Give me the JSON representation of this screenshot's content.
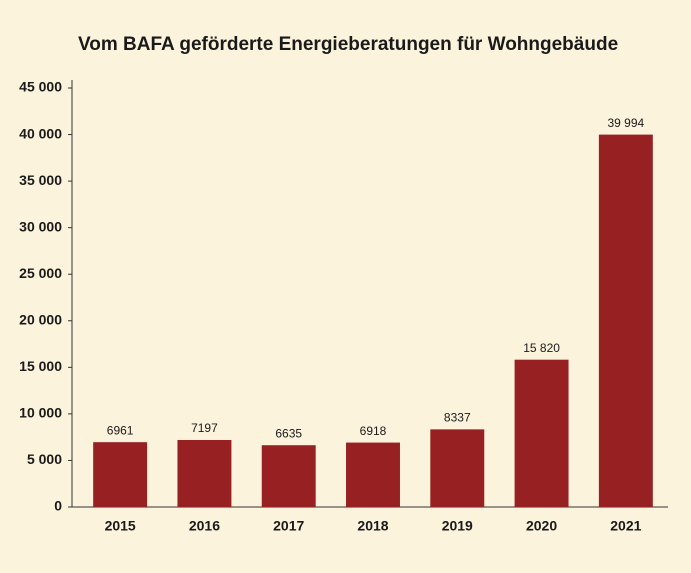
{
  "chart_data": {
    "type": "bar",
    "title": "Vom BAFA geförderte Energieberatungen für Wohngebäude",
    "categories": [
      "2015",
      "2016",
      "2017",
      "2018",
      "2019",
      "2020",
      "2021"
    ],
    "values": [
      6961,
      7197,
      6635,
      6918,
      8337,
      15820,
      39994
    ],
    "value_labels": [
      "6961",
      "7197",
      "6635",
      "6918",
      "8337",
      "15 820",
      "39 994"
    ],
    "color": "#962022",
    "ylim": [
      0,
      45000
    ],
    "yticks": [
      0,
      {
        "value": 5000,
        "label": "5 000"
      },
      {
        "value": 10000,
        "label": "10 000"
      },
      {
        "value": 15000,
        "label": "15 000"
      },
      {
        "value": 20000,
        "label": "20 000"
      },
      {
        "value": 25000,
        "label": "25 000"
      },
      {
        "value": 30000,
        "label": "30 000"
      },
      {
        "value": 35000,
        "label": "35 000"
      },
      {
        "value": 40000,
        "label": "40 000"
      },
      {
        "value": 45000,
        "label": "45 000"
      }
    ],
    "grid": false
  }
}
